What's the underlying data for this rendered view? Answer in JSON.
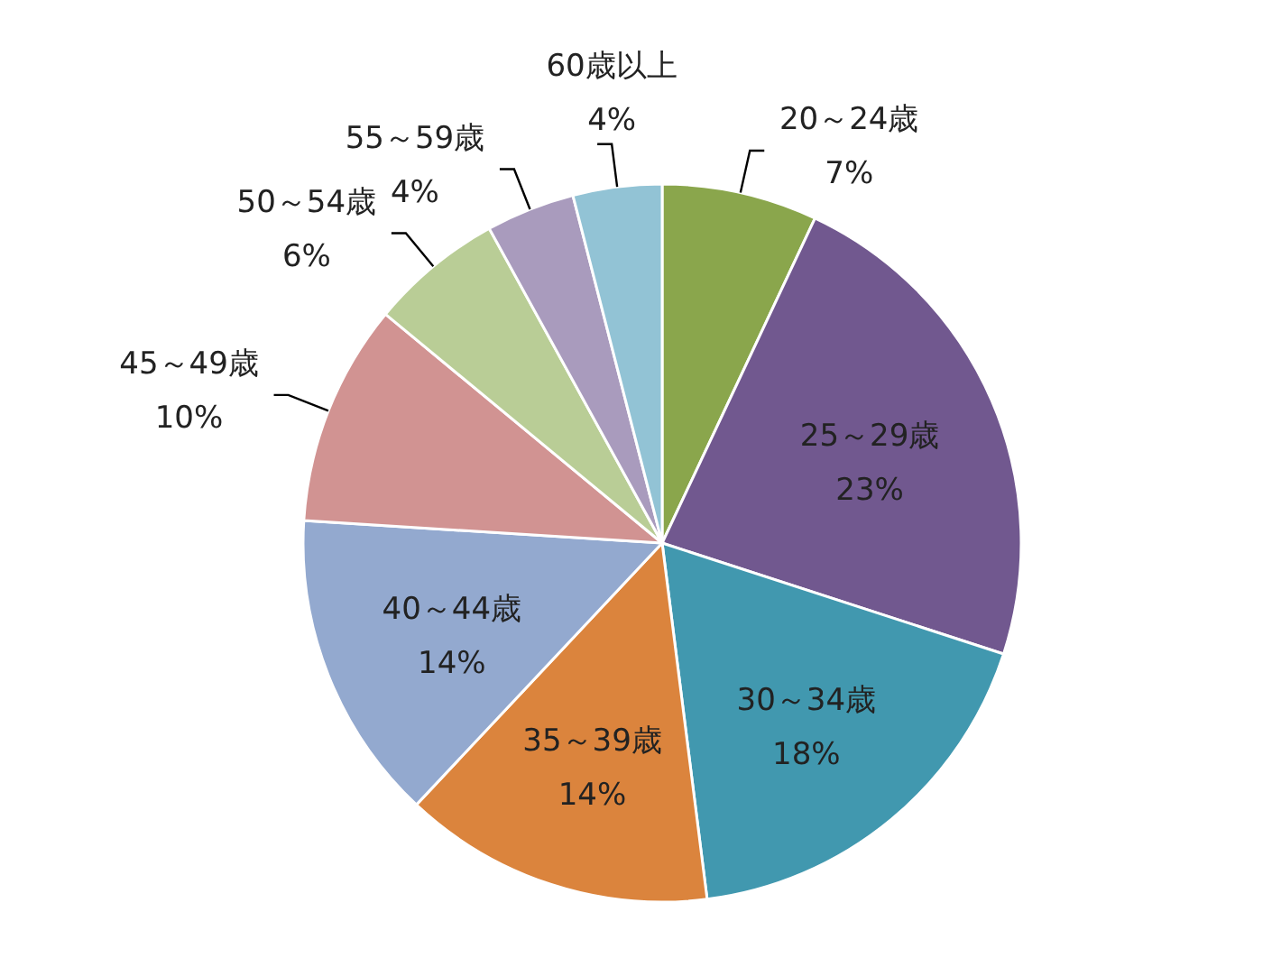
{
  "chart_data": {
    "type": "pie",
    "categories": [
      "20～24歳",
      "25～29歳",
      "30～34歳",
      "35～39歳",
      "40～44歳",
      "45～49歳",
      "50～54歳",
      "55～59歳",
      "60歳以上"
    ],
    "values": [
      7,
      23,
      18,
      14,
      14,
      10,
      6,
      4,
      4
    ],
    "colors": [
      "#8aa64c",
      "#71588f",
      "#4198af",
      "#db843d",
      "#93a9cf",
      "#d19392",
      "#b9cd96",
      "#a99bbd",
      "#92c3d5"
    ],
    "value_labels": [
      "7%",
      "23%",
      "18%",
      "14%",
      "14%",
      "10%",
      "6%",
      "4%",
      "4%"
    ]
  }
}
